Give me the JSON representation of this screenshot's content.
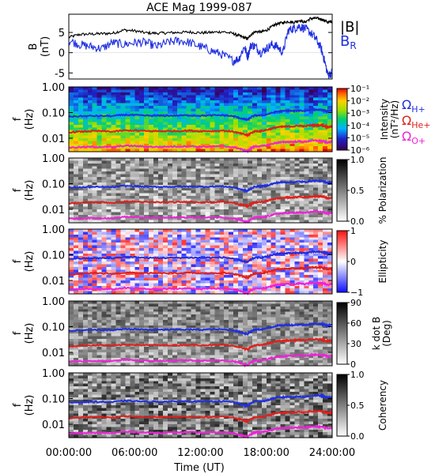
{
  "title": "ACE Mag 1999-087",
  "x_axis": {
    "label": "Time (UT)",
    "ticks": [
      "00:00:00",
      "06:00:00",
      "12:00:00",
      "18:00:00",
      "24:00:00"
    ],
    "range_hours": [
      0,
      24
    ]
  },
  "colors": {
    "black": "#000000",
    "blue": "#1f2fe0",
    "red": "#e0201a",
    "magenta": "#ee22d8"
  },
  "chart_data": [
    {
      "type": "line",
      "panel": "B",
      "ylabel": "B",
      "yunit": "(nT)",
      "ylim": [
        -6.5,
        9.5
      ],
      "yticks": [
        "5",
        "0",
        "-5"
      ],
      "x_hours": [
        0,
        1,
        2,
        3,
        4,
        5,
        6,
        7,
        8,
        9,
        10,
        11,
        12,
        13,
        14,
        15,
        15.5,
        16,
        16.3,
        16.6,
        17,
        17.5,
        18,
        18.5,
        19,
        19.5,
        20,
        20.5,
        21,
        21.5,
        22,
        22.5,
        23,
        23.3,
        23.6,
        24
      ],
      "series": [
        {
          "name": "|B|",
          "color": "black",
          "values": [
            3.8,
            4.5,
            4.6,
            4.7,
            4.8,
            5.6,
            5.4,
            4.9,
            4.8,
            4.9,
            5.0,
            5.1,
            4.9,
            5.0,
            5.2,
            4.7,
            4.2,
            3.7,
            3.4,
            4.5,
            5.2,
            5.1,
            5.5,
            6.4,
            7.2,
            7.4,
            7.7,
            7.5,
            8.0,
            7.5,
            8.4,
            8.5,
            8.3,
            7.9,
            7.5,
            7.8
          ]
        },
        {
          "name": "B",
          "name_sub": "R",
          "color": "blue",
          "values": [
            3.0,
            2.0,
            1.5,
            1.0,
            2.5,
            2.0,
            2.5,
            2.5,
            1.5,
            2.5,
            3.0,
            2.5,
            1.5,
            0.5,
            -0.5,
            -2.0,
            -1.5,
            1.5,
            -1.0,
            2.0,
            1.5,
            0.0,
            1.0,
            2.0,
            1.5,
            0.0,
            5.5,
            6.0,
            6.5,
            6.0,
            5.0,
            3.5,
            1.0,
            -2.0,
            -5.5,
            -5.0
          ]
        }
      ]
    },
    {
      "type": "heatmap",
      "panel": "Intensity",
      "ylabel": "f",
      "yunit": "(Hz)",
      "ylim": [
        0.003,
        1.0
      ],
      "yscale": "log",
      "yticks": [
        "1.00",
        "0.10",
        "0.01"
      ],
      "colorbar": {
        "title": "Intensity",
        "unit": "(nT²/Hz)",
        "scale": "log",
        "ticks": [
          "10⁻¹",
          "10⁻²",
          "10⁻³",
          "10⁻⁴",
          "10⁻⁵",
          "10⁻⁶"
        ]
      },
      "gyro_legend": [
        {
          "label": "Ω",
          "sub": "H+",
          "color": "blue"
        },
        {
          "label": "Ω",
          "sub": "He+",
          "color": "red"
        },
        {
          "label": "Ω",
          "sub": "O+",
          "color": "magenta"
        }
      ]
    },
    {
      "type": "heatmap",
      "panel": "Polarization",
      "ylabel": "f",
      "yunit": "(Hz)",
      "ylim": [
        0.003,
        1.0
      ],
      "yscale": "log",
      "yticks": [
        "1.00",
        "0.10",
        "0.01"
      ],
      "colorbar": {
        "title": "% Polarization",
        "unit": "",
        "scale": "linear",
        "ticks": [
          "1.0",
          "0.5",
          "0.0"
        ]
      }
    },
    {
      "type": "heatmap",
      "panel": "Ellipticity",
      "ylabel": "f",
      "yunit": "(Hz)",
      "ylim": [
        0.003,
        1.0
      ],
      "yscale": "log",
      "yticks": [
        "1.00",
        "0.10",
        "0.01"
      ],
      "colorbar": {
        "title": "Ellipticity",
        "unit": "",
        "scale": "linear",
        "ticks": [
          "1",
          "0",
          "−1"
        ]
      }
    },
    {
      "type": "heatmap",
      "panel": "kdotB",
      "ylabel": "f",
      "yunit": "(Hz)",
      "ylim": [
        0.003,
        1.0
      ],
      "yscale": "log",
      "yticks": [
        "1.00",
        "0.10",
        "0.01"
      ],
      "colorbar": {
        "title": "k dot B",
        "unit": "(Deg)",
        "scale": "linear",
        "ticks": [
          "90",
          "60",
          "30",
          "0"
        ]
      }
    },
    {
      "type": "heatmap",
      "panel": "Coherency",
      "ylabel": "f",
      "yunit": "(Hz)",
      "ylim": [
        0.003,
        1.0
      ],
      "yscale": "log",
      "yticks": [
        "1.00",
        "0.10",
        "0.01"
      ],
      "colorbar": {
        "title": "Coherency",
        "unit": "",
        "scale": "linear",
        "ticks": [
          "1.0",
          "0.5",
          "0.0"
        ]
      }
    }
  ],
  "gyrofrequency_lines": {
    "x_hours": [
      0,
      1,
      2,
      3,
      4,
      5,
      6,
      7,
      8,
      9,
      10,
      11,
      12,
      13,
      14,
      15,
      15.5,
      16,
      16.3,
      16.6,
      17,
      17.5,
      18,
      18.5,
      19,
      19.5,
      20,
      20.5,
      21,
      21.5,
      22,
      22.5,
      23,
      23.3,
      23.6,
      24
    ],
    "series": [
      {
        "name": "H+",
        "color": "blue",
        "values_hz": [
          0.07,
          0.072,
          0.074,
          0.074,
          0.073,
          0.082,
          0.08,
          0.076,
          0.075,
          0.076,
          0.077,
          0.078,
          0.076,
          0.078,
          0.079,
          0.072,
          0.063,
          0.055,
          0.052,
          0.066,
          0.078,
          0.078,
          0.084,
          0.097,
          0.11,
          0.113,
          0.117,
          0.115,
          0.122,
          0.115,
          0.128,
          0.13,
          0.127,
          0.12,
          0.108,
          0.118
        ]
      },
      {
        "name": "He+",
        "color": "red",
        "values_hz": [
          0.017,
          0.018,
          0.019,
          0.019,
          0.018,
          0.02,
          0.02,
          0.019,
          0.019,
          0.019,
          0.019,
          0.02,
          0.019,
          0.019,
          0.02,
          0.018,
          0.016,
          0.014,
          0.013,
          0.016,
          0.019,
          0.019,
          0.021,
          0.024,
          0.027,
          0.028,
          0.029,
          0.029,
          0.031,
          0.029,
          0.032,
          0.032,
          0.032,
          0.03,
          0.027,
          0.029
        ]
      },
      {
        "name": "O+",
        "color": "magenta",
        "values_hz": [
          0.0043,
          0.0045,
          0.0046,
          0.0046,
          0.0045,
          0.0051,
          0.005,
          0.0047,
          0.0046,
          0.0047,
          0.0048,
          0.0049,
          0.0047,
          0.0048,
          0.0049,
          0.0045,
          0.004,
          0.0034,
          0.0032,
          0.0041,
          0.0049,
          0.0049,
          0.0052,
          0.006,
          0.0068,
          0.007,
          0.0073,
          0.0072,
          0.0076,
          0.0072,
          0.008,
          0.0081,
          0.0079,
          0.0075,
          0.0068,
          0.0074
        ]
      }
    ]
  }
}
